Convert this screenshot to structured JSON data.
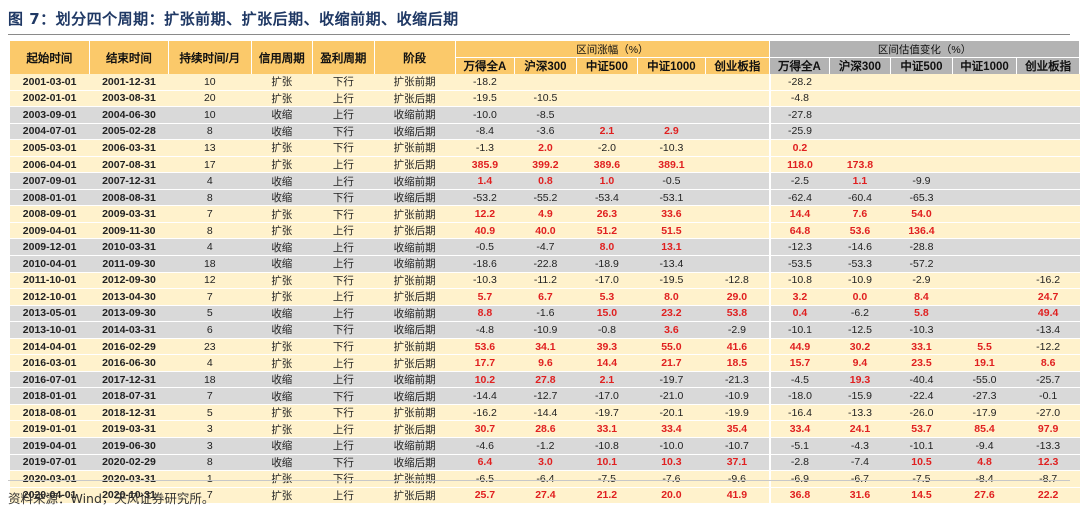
{
  "title": "图 7：划分四个周期：扩张前期、扩张后期、收缩前期、收缩后期",
  "headers": {
    "start": "起始时间",
    "end": "结束时间",
    "duration": "持续时间/月",
    "credit": "信用周期",
    "profit": "盈利周期",
    "stage": "阶段",
    "group_return": "区间涨幅（%）",
    "group_valuation": "区间估值变化（%）",
    "indices": [
      "万得全A",
      "沪深300",
      "中证500",
      "中证1000",
      "创业板指"
    ]
  },
  "rows": [
    {
      "start": "2001-03-01",
      "end": "2001-12-31",
      "dur": "10",
      "credit": "扩张",
      "profit": "下行",
      "stage": "扩张前期",
      "ret": [
        "-18.2",
        "",
        "",
        "",
        ""
      ],
      "val": [
        "-28.2",
        "",
        "",
        "",
        ""
      ]
    },
    {
      "start": "2002-01-01",
      "end": "2003-08-31",
      "dur": "20",
      "credit": "扩张",
      "profit": "上行",
      "stage": "扩张后期",
      "ret": [
        "-19.5",
        "-10.5",
        "",
        "",
        ""
      ],
      "val": [
        "-4.8",
        "",
        "",
        "",
        ""
      ]
    },
    {
      "start": "2003-09-01",
      "end": "2004-06-30",
      "dur": "10",
      "credit": "收缩",
      "profit": "上行",
      "stage": "收缩前期",
      "ret": [
        "-10.0",
        "-8.5",
        "",
        "",
        ""
      ],
      "val": [
        "-27.8",
        "",
        "",
        "",
        ""
      ]
    },
    {
      "start": "2004-07-01",
      "end": "2005-02-28",
      "dur": "8",
      "credit": "收缩",
      "profit": "下行",
      "stage": "收缩后期",
      "ret": [
        "-8.4",
        "-3.6",
        "2.1",
        "2.9",
        ""
      ],
      "val": [
        "-25.9",
        "",
        "",
        "",
        ""
      ]
    },
    {
      "start": "2005-03-01",
      "end": "2006-03-31",
      "dur": "13",
      "credit": "扩张",
      "profit": "下行",
      "stage": "扩张前期",
      "ret": [
        "-1.3",
        "2.0",
        "-2.0",
        "-10.3",
        ""
      ],
      "val": [
        "0.2",
        "",
        "",
        "",
        ""
      ]
    },
    {
      "start": "2006-04-01",
      "end": "2007-08-31",
      "dur": "17",
      "credit": "扩张",
      "profit": "上行",
      "stage": "扩张后期",
      "ret": [
        "385.9",
        "399.2",
        "389.6",
        "389.1",
        ""
      ],
      "val": [
        "118.0",
        "173.8",
        "",
        "",
        ""
      ]
    },
    {
      "start": "2007-09-01",
      "end": "2007-12-31",
      "dur": "4",
      "credit": "收缩",
      "profit": "上行",
      "stage": "收缩前期",
      "ret": [
        "1.4",
        "0.8",
        "1.0",
        "-0.5",
        ""
      ],
      "val": [
        "-2.5",
        "1.1",
        "-9.9",
        "",
        ""
      ]
    },
    {
      "start": "2008-01-01",
      "end": "2008-08-31",
      "dur": "8",
      "credit": "收缩",
      "profit": "下行",
      "stage": "收缩后期",
      "ret": [
        "-53.2",
        "-55.2",
        "-53.4",
        "-53.1",
        ""
      ],
      "val": [
        "-62.4",
        "-60.4",
        "-65.3",
        "",
        ""
      ]
    },
    {
      "start": "2008-09-01",
      "end": "2009-03-31",
      "dur": "7",
      "credit": "扩张",
      "profit": "下行",
      "stage": "扩张前期",
      "ret": [
        "12.2",
        "4.9",
        "26.3",
        "33.6",
        ""
      ],
      "val": [
        "14.4",
        "7.6",
        "54.0",
        "",
        ""
      ]
    },
    {
      "start": "2009-04-01",
      "end": "2009-11-30",
      "dur": "8",
      "credit": "扩张",
      "profit": "上行",
      "stage": "扩张后期",
      "ret": [
        "40.9",
        "40.0",
        "51.2",
        "51.5",
        ""
      ],
      "val": [
        "64.8",
        "53.6",
        "136.4",
        "",
        ""
      ]
    },
    {
      "start": "2009-12-01",
      "end": "2010-03-31",
      "dur": "4",
      "credit": "收缩",
      "profit": "上行",
      "stage": "收缩前期",
      "ret": [
        "-0.5",
        "-4.7",
        "8.0",
        "13.1",
        ""
      ],
      "val": [
        "-12.3",
        "-14.6",
        "-28.8",
        "",
        ""
      ]
    },
    {
      "start": "2010-04-01",
      "end": "2011-09-30",
      "dur": "18",
      "credit": "收缩",
      "profit": "上行",
      "stage": "收缩前期",
      "ret": [
        "-18.6",
        "-22.8",
        "-18.9",
        "-13.4",
        ""
      ],
      "val": [
        "-53.5",
        "-53.3",
        "-57.2",
        "",
        ""
      ]
    },
    {
      "start": "2011-10-01",
      "end": "2012-09-30",
      "dur": "12",
      "credit": "扩张",
      "profit": "下行",
      "stage": "扩张前期",
      "ret": [
        "-10.3",
        "-11.2",
        "-17.0",
        "-19.5",
        "-12.8"
      ],
      "val": [
        "-10.8",
        "-10.9",
        "-2.9",
        "",
        "-16.2"
      ]
    },
    {
      "start": "2012-10-01",
      "end": "2013-04-30",
      "dur": "7",
      "credit": "扩张",
      "profit": "上行",
      "stage": "扩张后期",
      "ret": [
        "5.7",
        "6.7",
        "5.3",
        "8.0",
        "29.0"
      ],
      "val": [
        "3.2",
        "0.0",
        "8.4",
        "",
        "24.7"
      ]
    },
    {
      "start": "2013-05-01",
      "end": "2013-09-30",
      "dur": "5",
      "credit": "收缩",
      "profit": "上行",
      "stage": "收缩前期",
      "ret": [
        "8.8",
        "-1.6",
        "15.0",
        "23.2",
        "53.8"
      ],
      "val": [
        "0.4",
        "-6.2",
        "5.8",
        "",
        "49.4"
      ]
    },
    {
      "start": "2013-10-01",
      "end": "2014-03-31",
      "dur": "6",
      "credit": "收缩",
      "profit": "下行",
      "stage": "收缩后期",
      "ret": [
        "-4.8",
        "-10.9",
        "-0.8",
        "3.6",
        "-2.9"
      ],
      "val": [
        "-10.1",
        "-12.5",
        "-10.3",
        "",
        "-13.4"
      ]
    },
    {
      "start": "2014-04-01",
      "end": "2016-02-29",
      "dur": "23",
      "credit": "扩张",
      "profit": "下行",
      "stage": "扩张前期",
      "ret": [
        "53.6",
        "34.1",
        "39.3",
        "55.0",
        "41.6"
      ],
      "val": [
        "44.9",
        "30.2",
        "33.1",
        "5.5",
        "-12.2"
      ]
    },
    {
      "start": "2016-03-01",
      "end": "2016-06-30",
      "dur": "4",
      "credit": "扩张",
      "profit": "上行",
      "stage": "扩张后期",
      "ret": [
        "17.7",
        "9.6",
        "14.4",
        "21.7",
        "18.5"
      ],
      "val": [
        "15.7",
        "9.4",
        "23.5",
        "19.1",
        "8.6"
      ]
    },
    {
      "start": "2016-07-01",
      "end": "2017-12-31",
      "dur": "18",
      "credit": "收缩",
      "profit": "上行",
      "stage": "收缩前期",
      "ret": [
        "10.2",
        "27.8",
        "2.1",
        "-19.7",
        "-21.3"
      ],
      "val": [
        "-4.5",
        "19.3",
        "-40.4",
        "-55.0",
        "-25.7"
      ]
    },
    {
      "start": "2018-01-01",
      "end": "2018-07-31",
      "dur": "7",
      "credit": "收缩",
      "profit": "下行",
      "stage": "收缩后期",
      "ret": [
        "-14.4",
        "-12.7",
        "-17.0",
        "-21.0",
        "-10.9"
      ],
      "val": [
        "-18.0",
        "-15.9",
        "-22.4",
        "-27.3",
        "-0.1"
      ]
    },
    {
      "start": "2018-08-01",
      "end": "2018-12-31",
      "dur": "5",
      "credit": "扩张",
      "profit": "下行",
      "stage": "扩张前期",
      "ret": [
        "-16.2",
        "-14.4",
        "-19.7",
        "-20.1",
        "-19.9"
      ],
      "val": [
        "-16.4",
        "-13.3",
        "-26.0",
        "-17.9",
        "-27.0"
      ]
    },
    {
      "start": "2019-01-01",
      "end": "2019-03-31",
      "dur": "3",
      "credit": "扩张",
      "profit": "上行",
      "stage": "扩张后期",
      "ret": [
        "30.7",
        "28.6",
        "33.1",
        "33.4",
        "35.4"
      ],
      "val": [
        "33.4",
        "24.1",
        "53.7",
        "85.4",
        "97.9"
      ]
    },
    {
      "start": "2019-04-01",
      "end": "2019-06-30",
      "dur": "3",
      "credit": "收缩",
      "profit": "上行",
      "stage": "收缩前期",
      "ret": [
        "-4.6",
        "-1.2",
        "-10.8",
        "-10.0",
        "-10.7"
      ],
      "val": [
        "-5.1",
        "-4.3",
        "-10.1",
        "-9.4",
        "-13.3"
      ]
    },
    {
      "start": "2019-07-01",
      "end": "2020-02-29",
      "dur": "8",
      "credit": "收缩",
      "profit": "下行",
      "stage": "收缩后期",
      "ret": [
        "6.4",
        "3.0",
        "10.1",
        "10.3",
        "37.1"
      ],
      "val": [
        "-2.8",
        "-7.4",
        "10.5",
        "4.8",
        "12.3"
      ]
    },
    {
      "start": "2020-03-01",
      "end": "2020-03-31",
      "dur": "1",
      "credit": "扩张",
      "profit": "下行",
      "stage": "扩张前期",
      "ret": [
        "-6.5",
        "-6.4",
        "-7.5",
        "-7.6",
        "-9.6"
      ],
      "val": [
        "-6.9",
        "-6.7",
        "-7.5",
        "-8.4",
        "-8.7"
      ]
    },
    {
      "start": "2020-04-01",
      "end": "2020-10-31",
      "dur": "7",
      "credit": "扩张",
      "profit": "上行",
      "stage": "扩张后期",
      "ret": [
        "25.7",
        "27.4",
        "21.2",
        "20.0",
        "41.9"
      ],
      "val": [
        "36.8",
        "31.6",
        "14.5",
        "27.6",
        "22.2"
      ]
    }
  ],
  "colors": {
    "expand_row": "#fff2cc",
    "contract_row": "#d9d9d9",
    "header_return": "#fbc96a",
    "header_valuation": "#b3b3b3",
    "positive": "#e02020"
  },
  "source": "资料来源：Wind，天风证券研究所。"
}
